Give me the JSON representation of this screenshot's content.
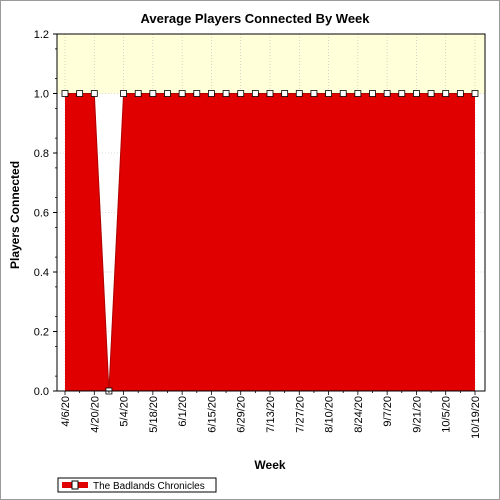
{
  "chart_data": {
    "type": "area",
    "title": "Average Players Connected By Week",
    "xlabel": "Week",
    "ylabel": "Players Connected",
    "ylim": [
      0,
      1.2
    ],
    "yticks": [
      "0.0",
      "0.2",
      "0.4",
      "0.6",
      "0.8",
      "1.0",
      "1.2"
    ],
    "x": [
      "4/6/20",
      "4/13/20",
      "4/20/20",
      "4/27/20",
      "5/4/20",
      "5/11/20",
      "5/18/20",
      "5/25/20",
      "6/1/20",
      "6/8/20",
      "6/15/20",
      "6/22/20",
      "6/29/20",
      "7/6/20",
      "7/13/20",
      "7/20/20",
      "7/27/20",
      "8/3/20",
      "8/10/20",
      "8/17/20",
      "8/24/20",
      "8/31/20",
      "9/7/20",
      "9/14/20",
      "9/21/20",
      "9/28/20",
      "10/5/20",
      "10/12/20",
      "10/19/20"
    ],
    "xtick_labels": [
      "4/6/20",
      "4/20/20",
      "5/4/20",
      "5/18/20",
      "6/1/20",
      "6/15/20",
      "6/29/20",
      "7/13/20",
      "7/27/20",
      "8/10/20",
      "8/24/20",
      "9/7/20",
      "9/21/20",
      "10/5/20",
      "10/19/20"
    ],
    "series": [
      {
        "name": "The Badlands Chronicles",
        "color": "#e00000",
        "values": [
          1,
          1,
          1,
          0,
          1,
          1,
          1,
          1,
          1,
          1,
          1,
          1,
          1,
          1,
          1,
          1,
          1,
          1,
          1,
          1,
          1,
          1,
          1,
          1,
          1,
          1,
          1,
          1,
          1
        ]
      }
    ],
    "grid": true,
    "upper_band_color": "#ffffd9",
    "legend_position": "bottom-left"
  }
}
